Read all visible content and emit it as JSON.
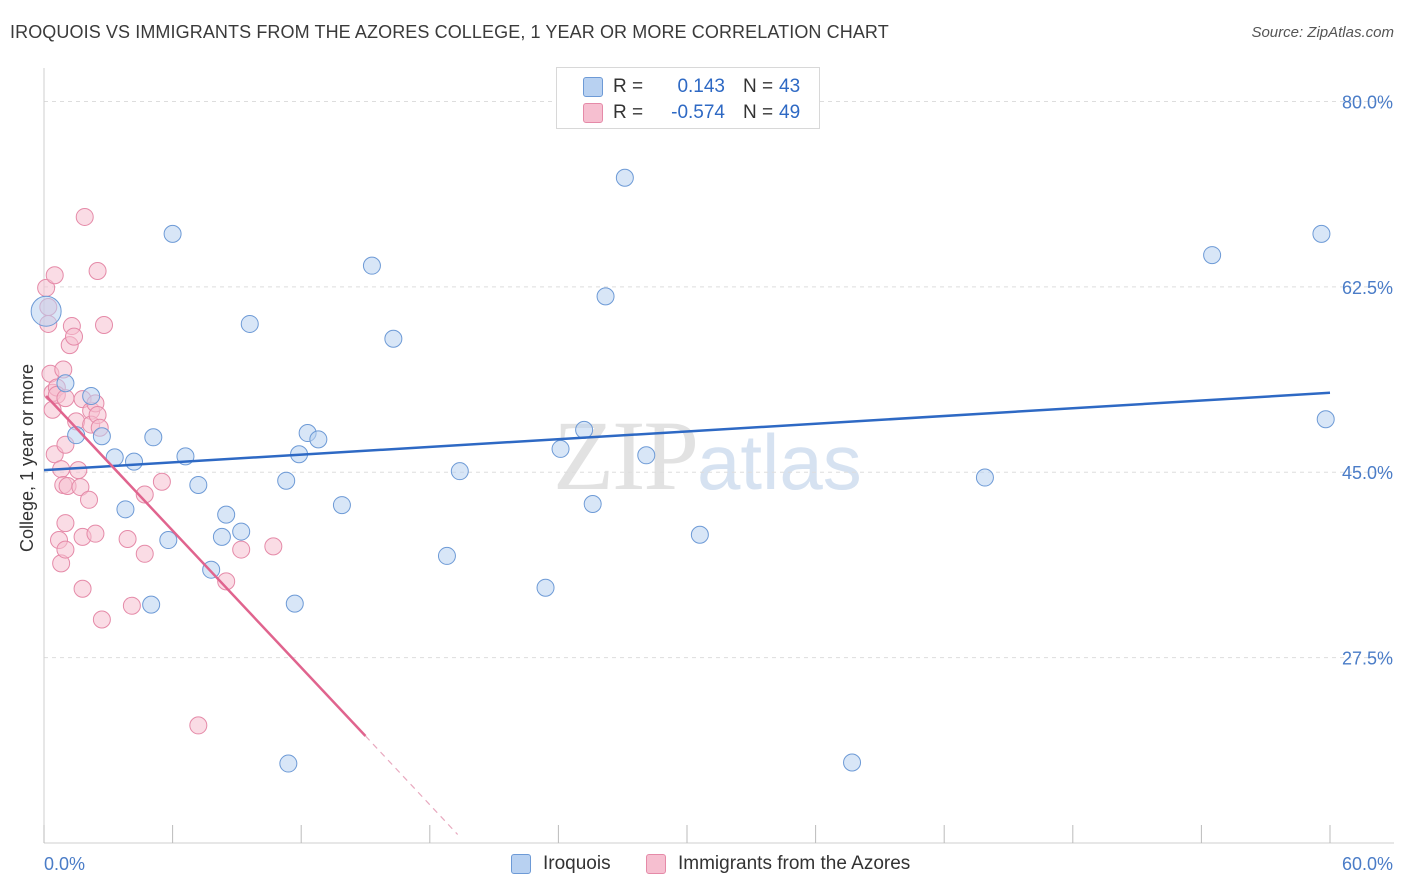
{
  "header": {
    "title": "IROQUOIS VS IMMIGRANTS FROM THE AZORES COLLEGE, 1 YEAR OR MORE CORRELATION CHART",
    "source": "Source: ZipAtlas.com"
  },
  "watermark": {
    "zip": "ZIP",
    "atlas": "atlas"
  },
  "legend": {
    "rows": [
      {
        "r_label": "R =",
        "r_value": "0.143",
        "n_label": "N =",
        "n_value": "43"
      },
      {
        "r_label": "R =",
        "r_value": "-0.574",
        "n_label": "N =",
        "n_value": "49"
      }
    ]
  },
  "bottom_legend": {
    "series1": "Iroquois",
    "series2": "Immigrants from the Azores"
  },
  "colors": {
    "series1_fill": "#b8d1f1",
    "series1_stroke": "#6d9ad6",
    "series1_line": "#2e69c4",
    "series2_fill": "#f6bfd0",
    "series2_stroke": "#e58aa8",
    "series2_line": "#e0648e",
    "grid": "#dddddd",
    "axis_text": "#4a7cc7"
  },
  "chart_data": {
    "type": "scatter",
    "title": "IROQUOIS VS IMMIGRANTS FROM THE AZORES COLLEGE, 1 YEAR OR MORE CORRELATION CHART",
    "xlabel": "",
    "ylabel": "College, 1 year or more",
    "xlim": [
      0,
      60
    ],
    "ylim": [
      10,
      82.5
    ],
    "x_tick_labels": [
      "0.0%",
      "60.0%"
    ],
    "y_ticks": [
      27.5,
      45.0,
      62.5,
      80.0
    ],
    "y_tick_labels": [
      "27.5%",
      "45.0%",
      "62.5%",
      "80.0%"
    ],
    "grid": true,
    "legend_position": "top-center",
    "series": [
      {
        "name": "Iroquois",
        "r": 0.143,
        "n": 43,
        "trend": {
          "x": [
            0,
            60
          ],
          "y": [
            45.2,
            52.5
          ]
        },
        "points": [
          [
            0.1,
            60.2
          ],
          [
            1.0,
            53.4
          ],
          [
            1.5,
            48.5
          ],
          [
            2.2,
            52.2
          ],
          [
            2.7,
            48.4
          ],
          [
            3.3,
            46.4
          ],
          [
            3.8,
            41.5
          ],
          [
            4.2,
            46.0
          ],
          [
            5.0,
            32.5
          ],
          [
            5.1,
            48.3
          ],
          [
            5.8,
            38.6
          ],
          [
            6.0,
            67.5
          ],
          [
            6.6,
            46.5
          ],
          [
            7.2,
            43.8
          ],
          [
            7.8,
            35.8
          ],
          [
            8.3,
            38.9
          ],
          [
            8.5,
            41.0
          ],
          [
            9.2,
            39.4
          ],
          [
            9.6,
            59.0
          ],
          [
            11.3,
            44.2
          ],
          [
            11.4,
            17.5
          ],
          [
            11.7,
            32.6
          ],
          [
            11.9,
            46.7
          ],
          [
            12.3,
            48.7
          ],
          [
            12.8,
            48.1
          ],
          [
            13.9,
            41.9
          ],
          [
            15.3,
            64.5
          ],
          [
            16.3,
            57.6
          ],
          [
            18.8,
            37.1
          ],
          [
            19.4,
            45.1
          ],
          [
            23.4,
            34.1
          ],
          [
            24.1,
            47.2
          ],
          [
            25.2,
            49.0
          ],
          [
            25.6,
            42.0
          ],
          [
            26.2,
            61.6
          ],
          [
            27.1,
            72.8
          ],
          [
            28.1,
            46.6
          ],
          [
            30.6,
            39.1
          ],
          [
            37.7,
            17.6
          ],
          [
            43.9,
            44.5
          ],
          [
            54.5,
            65.5
          ],
          [
            59.6,
            67.5
          ],
          [
            59.8,
            50.0
          ]
        ]
      },
      {
        "name": "Immigrants from the Azores",
        "r": -0.574,
        "n": 49,
        "trend": {
          "x": [
            0.1,
            15.0
          ],
          "y": [
            52.2,
            20.1
          ]
        },
        "trend_dashed": {
          "x": [
            15.0,
            19.3
          ],
          "y": [
            20.1,
            10.8
          ]
        },
        "points": [
          [
            0.1,
            62.4
          ],
          [
            0.2,
            60.6
          ],
          [
            0.2,
            59.0
          ],
          [
            0.3,
            54.3
          ],
          [
            0.4,
            52.5
          ],
          [
            0.4,
            50.9
          ],
          [
            0.5,
            46.7
          ],
          [
            0.5,
            63.6
          ],
          [
            0.6,
            53.0
          ],
          [
            0.6,
            52.3
          ],
          [
            0.7,
            38.6
          ],
          [
            0.8,
            45.3
          ],
          [
            0.8,
            36.4
          ],
          [
            0.9,
            54.7
          ],
          [
            0.9,
            43.8
          ],
          [
            1.0,
            52.0
          ],
          [
            1.0,
            47.6
          ],
          [
            1.0,
            40.2
          ],
          [
            1.0,
            37.7
          ],
          [
            1.1,
            43.7
          ],
          [
            1.2,
            57.0
          ],
          [
            1.3,
            58.8
          ],
          [
            1.4,
            57.8
          ],
          [
            1.5,
            49.8
          ],
          [
            1.6,
            45.2
          ],
          [
            1.7,
            43.6
          ],
          [
            1.8,
            51.9
          ],
          [
            1.8,
            38.9
          ],
          [
            1.8,
            34.0
          ],
          [
            1.9,
            69.1
          ],
          [
            2.1,
            42.4
          ],
          [
            2.2,
            50.8
          ],
          [
            2.2,
            49.5
          ],
          [
            2.4,
            51.5
          ],
          [
            2.4,
            39.2
          ],
          [
            2.5,
            64.0
          ],
          [
            2.5,
            50.4
          ],
          [
            2.6,
            49.2
          ],
          [
            2.7,
            31.1
          ],
          [
            2.8,
            58.9
          ],
          [
            3.9,
            38.7
          ],
          [
            4.1,
            32.4
          ],
          [
            4.7,
            37.3
          ],
          [
            4.7,
            42.9
          ],
          [
            5.5,
            44.1
          ],
          [
            7.2,
            21.1
          ],
          [
            8.5,
            34.7
          ],
          [
            9.2,
            37.7
          ],
          [
            10.7,
            38.0
          ]
        ]
      }
    ]
  }
}
